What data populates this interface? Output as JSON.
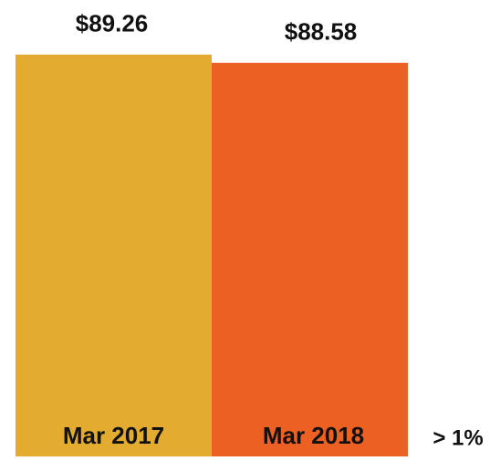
{
  "chart_data": {
    "type": "bar",
    "categories": [
      "Mar 2017",
      "Mar 2018"
    ],
    "values": [
      89.26,
      88.58
    ],
    "value_labels": [
      "$89.26",
      "$88.58"
    ],
    "colors": [
      "#e3ac30",
      "#ed6024"
    ],
    "ylim": [
      56,
      90
    ],
    "annotation": "> 1%"
  }
}
